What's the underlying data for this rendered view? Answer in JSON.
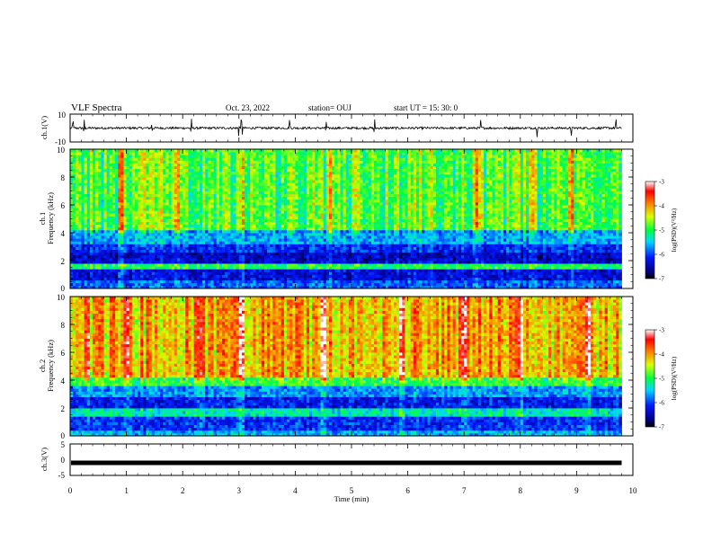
{
  "header": {
    "title": "VLF Spectra",
    "date": "Oct. 23, 2022",
    "station": "station= OUJ",
    "start_ut": "start  UT  =   15: 30: 0"
  },
  "chart_data": [
    {
      "type": "line",
      "name": "ch1-waveform",
      "ylabel": "ch.1(V)",
      "ylim": [
        -10,
        10
      ],
      "yticks": [
        "10",
        "-10"
      ],
      "x_range_min": [
        0,
        9.8
      ],
      "description_values": "broadband voltage trace near 0 V with impulsive spikes",
      "spike_times_min": [
        0.05,
        0.25,
        1.45,
        2.15,
        3.0,
        3.05,
        3.9,
        4.55,
        5.4,
        7.3,
        8.3,
        8.9,
        9.7
      ],
      "colors": {
        "trace": "#000000"
      }
    },
    {
      "type": "heatmap",
      "name": "ch1-spectrogram",
      "ylabel": "ch.1\nFrequency (kHz)",
      "xlim": [
        0,
        10
      ],
      "ylim": [
        0,
        10
      ],
      "yticks": [
        "0",
        "2",
        "4",
        "6",
        "8",
        "10"
      ],
      "data_extent_min": 9.8,
      "colorbar": {
        "label": "log(PSD)(V²/Hz)",
        "range": [
          -7,
          -3
        ],
        "ticks": [
          "-3",
          "-4",
          "-5",
          "-6",
          "-7"
        ]
      },
      "bands": [
        {
          "f_from": 0,
          "f_to": 0.6,
          "level": -5.9
        },
        {
          "f_from": 0.6,
          "f_to": 1.5,
          "level": -6.3
        },
        {
          "f_from": 1.5,
          "f_to": 1.8,
          "level": -5.0
        },
        {
          "f_from": 1.8,
          "f_to": 2.6,
          "level": -6.4
        },
        {
          "f_from": 2.6,
          "f_to": 3.3,
          "level": -6.1
        },
        {
          "f_from": 3.3,
          "f_to": 4.2,
          "level": -5.6
        },
        {
          "f_from": 4.2,
          "f_to": 10,
          "level": -4.8
        }
      ],
      "bursts_min": [
        0.9,
        1.9,
        3.05,
        4.6,
        7.2,
        8.2,
        8.9
      ]
    },
    {
      "type": "heatmap",
      "name": "ch2-spectrogram",
      "ylabel": "ch.2\nFrequency (kHz)",
      "xlim": [
        0,
        10
      ],
      "ylim": [
        0,
        10
      ],
      "yticks": [
        "0",
        "2",
        "4",
        "6",
        "8",
        "10"
      ],
      "data_extent_min": 9.8,
      "colorbar": {
        "label": "log(PSD)(V²/Hz)",
        "range": [
          -7,
          -3
        ],
        "ticks": [
          "-3",
          "-4",
          "-5",
          "-6",
          "-7"
        ]
      },
      "bands": [
        {
          "f_from": 0,
          "f_to": 0.5,
          "level": -5.6
        },
        {
          "f_from": 0.5,
          "f_to": 1.5,
          "level": -6.1
        },
        {
          "f_from": 1.5,
          "f_to": 2.0,
          "level": -5.3
        },
        {
          "f_from": 2.0,
          "f_to": 2.8,
          "level": -6.2
        },
        {
          "f_from": 2.8,
          "f_to": 3.7,
          "level": -5.7
        },
        {
          "f_from": 3.7,
          "f_to": 4.3,
          "level": -4.9
        },
        {
          "f_from": 4.3,
          "f_to": 10,
          "level": -4.1
        }
      ],
      "bursts_min": [
        0.3,
        1.0,
        2.3,
        3.05,
        4.5,
        5.9,
        7.0,
        8.0,
        9.2
      ]
    },
    {
      "type": "line",
      "name": "ch3-waveform",
      "ylabel": "ch.3(V)",
      "ylim": [
        -5,
        5
      ],
      "yticks": [
        "5",
        "0",
        "-5"
      ],
      "value_v": -1.0,
      "x_range_min": [
        0,
        9.8
      ],
      "colors": {
        "trace": "#000000"
      }
    }
  ],
  "time_axis": {
    "xlabel": "Time  (min)",
    "xlim": [
      0,
      10
    ],
    "ticks": [
      "0",
      "1",
      "2",
      "3",
      "4",
      "5",
      "6",
      "7",
      "8",
      "9",
      "10"
    ]
  }
}
